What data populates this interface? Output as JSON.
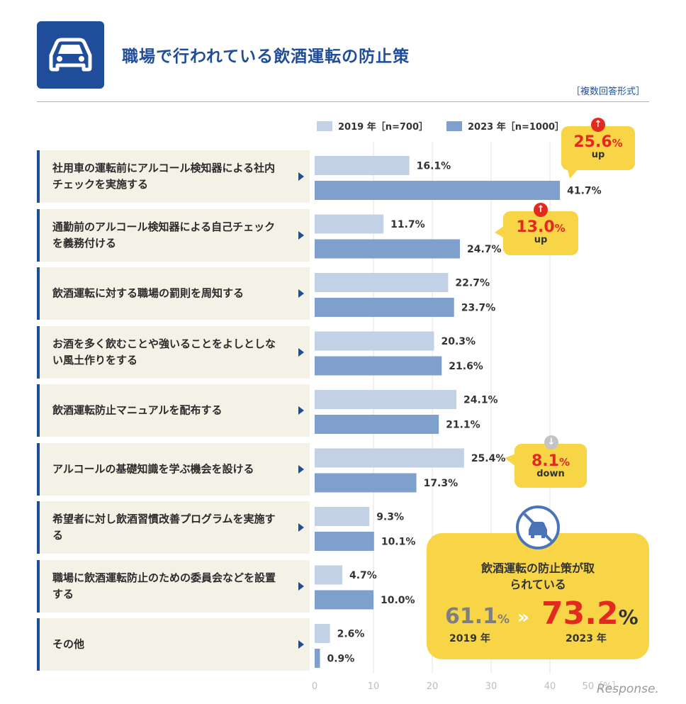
{
  "header": {
    "title": "職場で行われている飲酒運転の防止策",
    "note": "［複数回答形式］",
    "icon": "car-icon"
  },
  "legend": {
    "series_2019": "2019 年［n=700］",
    "series_2023": "2023 年［n=1000］"
  },
  "colors": {
    "c2019": "#c2d1e6",
    "c2023": "#7f9fcc",
    "accent": "#1f4d9a",
    "callout": "#f7d547",
    "red": "#e32a1f"
  },
  "chart_data": {
    "type": "bar",
    "orientation": "horizontal",
    "categories": [
      "社用車の運転前にアルコール検知器による社内チェックを実施する",
      "通勤前のアルコール検知器による自己チェックを義務付ける",
      "飲酒運転に対する職場の罰則を周知する",
      "お酒を多く飲むことや強いることをよしとしない風土作りをする",
      "飲酒運転防止マニュアルを配布する",
      "アルコールの基礎知識を学ぶ機会を設ける",
      "希望者に対し飲酒習慣改善プログラムを実施する",
      "職場に飲酒運転防止のための委員会などを設置する",
      "その他"
    ],
    "series": [
      {
        "name": "2019 年［n=700］",
        "values": [
          16.1,
          11.7,
          22.7,
          20.3,
          24.1,
          25.4,
          9.3,
          4.7,
          2.6
        ],
        "labels": [
          "16.1%",
          "11.7%",
          "22.7%",
          "20.3%",
          "24.1%",
          "25.4%",
          "9.3%",
          "4.7%",
          "2.6%"
        ]
      },
      {
        "name": "2023 年［n=1000］",
        "values": [
          41.7,
          24.7,
          23.7,
          21.6,
          21.1,
          17.3,
          10.1,
          10.0,
          0.9
        ],
        "labels": [
          "41.7%",
          "24.7%",
          "23.7%",
          "21.6%",
          "21.1%",
          "17.3%",
          "10.1%",
          "10.0%",
          "0.9%"
        ]
      }
    ],
    "xlim": [
      0,
      50
    ],
    "ticks": [
      "0",
      "10",
      "20",
      "30",
      "40"
    ],
    "unit_label": "50［%］",
    "grid": true
  },
  "callouts": [
    {
      "value": "25.6",
      "unit": "%",
      "direction": "up",
      "arrow": "↑"
    },
    {
      "value": "13.0",
      "unit": "%",
      "direction": "up",
      "arrow": "↑"
    },
    {
      "value": "8.1",
      "unit": "%",
      "direction": "down",
      "arrow": "↓"
    }
  ],
  "summary": {
    "headline": "飲酒運転の防止策が取られている",
    "old_value": "61.1",
    "new_value": "73.2",
    "unit": "%",
    "arrows": "»",
    "old_year": "2019 年",
    "new_year": "2023 年",
    "icon": "no-drunk-driving-icon"
  },
  "watermark": "Response."
}
